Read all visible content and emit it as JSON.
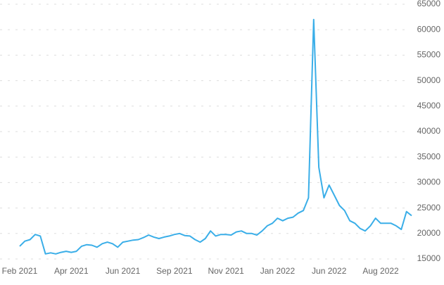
{
  "chart_data": {
    "type": "line",
    "categories": [
      "Feb 2021",
      null,
      null,
      null,
      null,
      null,
      null,
      null,
      null,
      null,
      "Apr 2021",
      null,
      null,
      null,
      null,
      null,
      null,
      null,
      null,
      null,
      "Jun 2021",
      null,
      null,
      null,
      null,
      null,
      null,
      null,
      null,
      null,
      "Sep 2021",
      null,
      null,
      null,
      null,
      null,
      null,
      null,
      null,
      null,
      "Nov 2021",
      null,
      null,
      null,
      null,
      null,
      null,
      null,
      null,
      null,
      "Jan 2022",
      null,
      null,
      null,
      null,
      null,
      null,
      null,
      null,
      null,
      "Jun 2022",
      null,
      null,
      null,
      null,
      null,
      null,
      null,
      null,
      null,
      "Aug 2022",
      null,
      null,
      null,
      null,
      null,
      null
    ],
    "series": [
      {
        "color": "#3aaee8",
        "values": [
          17500,
          18500,
          18800,
          19800,
          19500,
          16000,
          16200,
          16000,
          16300,
          16500,
          16300,
          16500,
          17500,
          17800,
          17700,
          17300,
          18000,
          18300,
          18000,
          17300,
          18300,
          18500,
          18700,
          18800,
          19200,
          19700,
          19300,
          19000,
          19300,
          19500,
          19800,
          20000,
          19600,
          19500,
          18800,
          18300,
          19000,
          20500,
          19500,
          19800,
          19800,
          19700,
          20300,
          20500,
          20000,
          20000,
          19700,
          20500,
          21500,
          22000,
          23000,
          22500,
          23000,
          23200,
          24000,
          24500,
          27000,
          62000,
          33000,
          27000,
          29500,
          27500,
          25500,
          24500,
          22500,
          22000,
          21000,
          20500,
          21500,
          23000,
          22000,
          22000,
          22000,
          21500,
          20800,
          24300,
          23500
        ]
      }
    ],
    "ylim": [
      15000,
      65000
    ],
    "yticks": [
      15000,
      20000,
      25000,
      30000,
      35000,
      40000,
      45000,
      50000,
      55000,
      60000,
      65000
    ],
    "grid": true,
    "y_axis_side": "right"
  }
}
